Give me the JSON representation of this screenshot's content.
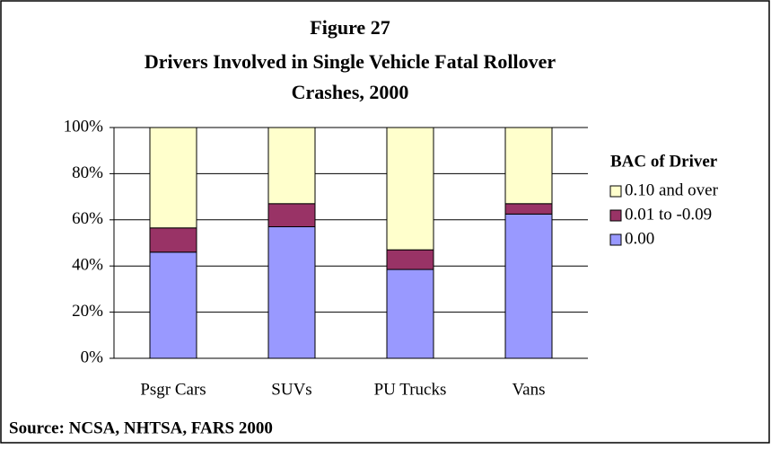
{
  "chart_data": {
    "type": "stacked_bar",
    "title": [
      "Figure 27",
      "Drivers Involved in Single Vehicle Fatal Rollover",
      "Crashes, 2000"
    ],
    "source": "Source: NCSA, NHTSA, FARS 2000",
    "legend_title": "BAC of Driver",
    "legend_position": "right",
    "categories": [
      "Psgr Cars",
      "SUVs",
      "PU Trucks",
      "Vans"
    ],
    "series": [
      {
        "name": "0.00",
        "color": "#9999ff",
        "values": [
          46,
          57,
          38.5,
          62.5
        ]
      },
      {
        "name": "0.01 to -0.09",
        "color": "#993366",
        "values": [
          10.5,
          10,
          8.5,
          4.5
        ]
      },
      {
        "name": "0.10 and over",
        "color": "#ffffcc",
        "values": [
          43.5,
          33,
          53,
          33
        ]
      }
    ],
    "ylim": [
      0,
      100
    ],
    "yticks": [
      {
        "value": 0,
        "label": "0%"
      },
      {
        "value": 20,
        "label": "20%"
      },
      {
        "value": 40,
        "label": "40%"
      },
      {
        "value": 60,
        "label": "60%"
      },
      {
        "value": 80,
        "label": "80%"
      },
      {
        "value": 100,
        "label": "100%"
      }
    ],
    "grid": true
  }
}
